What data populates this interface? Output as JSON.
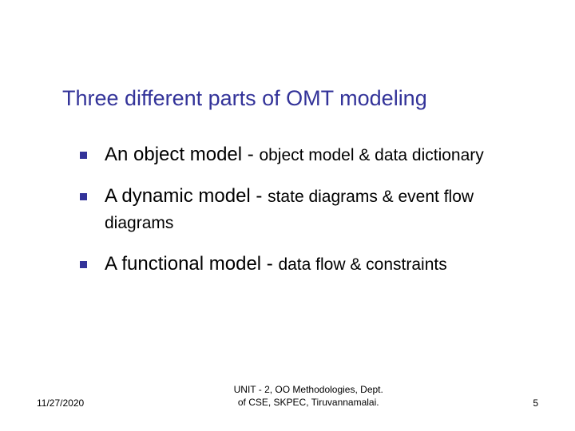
{
  "title": "Three different parts of OMT modeling",
  "title_color": "#333399",
  "title_fontsize": 27,
  "bullet_marker_color": "#333399",
  "bullets": [
    {
      "main": "An object model - ",
      "detail": "object model & data dictionary"
    },
    {
      "main": "A dynamic model - ",
      "detail": "state diagrams & event flow diagrams"
    },
    {
      "main": "A functional model - ",
      "detail": "data flow & constraints"
    }
  ],
  "body_main_fontsize": 24,
  "body_detail_fontsize": 21,
  "body_color": "#000000",
  "footer": {
    "date": "11/27/2020",
    "center_line1": "UNIT - 2, OO Methodologies, Dept.",
    "center_line2": "of CSE, SKPEC, Tiruvannamalai.",
    "page": "5",
    "fontsize": 12,
    "color": "#000000"
  },
  "background_color": "#ffffff"
}
